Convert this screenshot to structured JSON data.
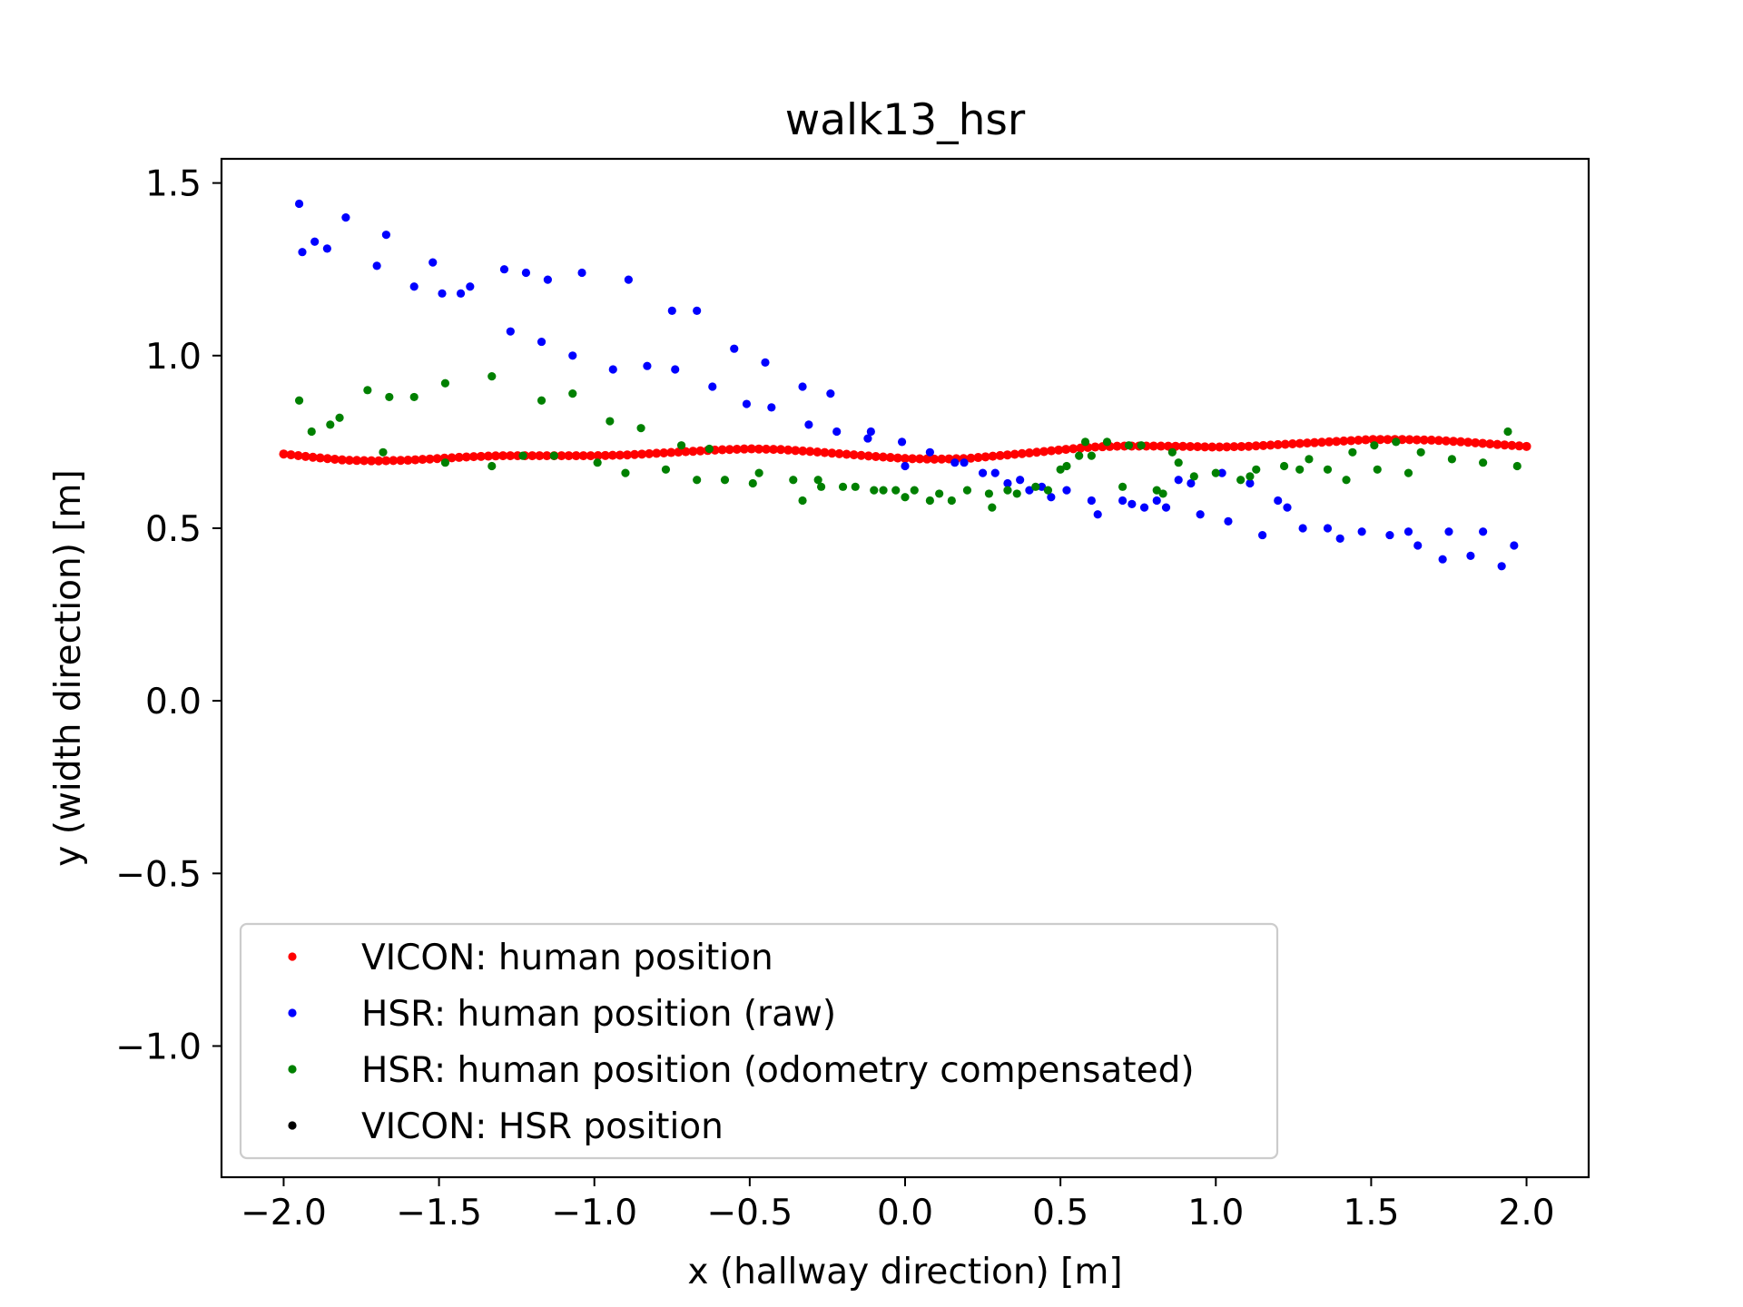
{
  "chart_data": {
    "type": "scatter",
    "title": "walk13_hsr",
    "xlabel": "x (hallway direction) [m]",
    "ylabel": "y (width direction) [m]",
    "xlim": [
      -2.2,
      2.2
    ],
    "ylim": [
      -1.38,
      1.57
    ],
    "xticks": [
      -2.0,
      -1.5,
      -1.0,
      -0.5,
      0.0,
      0.5,
      1.0,
      1.5,
      2.0
    ],
    "xtick_labels": [
      "−2.0",
      "−1.5",
      "−1.0",
      "−0.5",
      "0.0",
      "0.5",
      "1.0",
      "1.5",
      "2.0"
    ],
    "yticks": [
      -1.0,
      -0.5,
      0.0,
      0.5,
      1.0,
      1.5
    ],
    "ytick_labels": [
      "−1.0",
      "−0.5",
      "0.0",
      "0.5",
      "1.0",
      "1.5"
    ],
    "grid": false,
    "legend_position": "lower-left",
    "series": [
      {
        "name": "VICON: human position",
        "color": "#ff0000",
        "curve": [
          [
            -2.0,
            0.715
          ],
          [
            -1.9,
            0.705
          ],
          [
            -1.8,
            0.697
          ],
          [
            -1.7,
            0.695
          ],
          [
            -1.6,
            0.697
          ],
          [
            -1.5,
            0.702
          ],
          [
            -1.4,
            0.707
          ],
          [
            -1.3,
            0.71
          ],
          [
            -1.2,
            0.71
          ],
          [
            -1.1,
            0.71
          ],
          [
            -1.0,
            0.71
          ],
          [
            -0.9,
            0.712
          ],
          [
            -0.8,
            0.717
          ],
          [
            -0.7,
            0.722
          ],
          [
            -0.6,
            0.727
          ],
          [
            -0.5,
            0.73
          ],
          [
            -0.4,
            0.728
          ],
          [
            -0.3,
            0.722
          ],
          [
            -0.2,
            0.715
          ],
          [
            -0.1,
            0.708
          ],
          [
            0.0,
            0.702
          ],
          [
            0.1,
            0.7
          ],
          [
            0.2,
            0.702
          ],
          [
            0.3,
            0.71
          ],
          [
            0.4,
            0.718
          ],
          [
            0.5,
            0.727
          ],
          [
            0.6,
            0.735
          ],
          [
            0.7,
            0.738
          ],
          [
            0.8,
            0.738
          ],
          [
            0.9,
            0.737
          ],
          [
            1.0,
            0.735
          ],
          [
            1.1,
            0.737
          ],
          [
            1.2,
            0.742
          ],
          [
            1.3,
            0.747
          ],
          [
            1.4,
            0.752
          ],
          [
            1.5,
            0.757
          ],
          [
            1.6,
            0.757
          ],
          [
            1.7,
            0.755
          ],
          [
            1.8,
            0.75
          ],
          [
            1.9,
            0.743
          ],
          [
            2.0,
            0.737
          ]
        ],
        "points": []
      },
      {
        "name": "HSR: human position (raw)",
        "color": "#0000ff",
        "points": [
          [
            -1.95,
            1.44
          ],
          [
            -1.94,
            1.3
          ],
          [
            -1.9,
            1.33
          ],
          [
            -1.86,
            1.31
          ],
          [
            -1.8,
            1.4
          ],
          [
            -1.7,
            1.26
          ],
          [
            -1.67,
            1.35
          ],
          [
            -1.58,
            1.2
          ],
          [
            -1.52,
            1.27
          ],
          [
            -1.49,
            1.18
          ],
          [
            -1.43,
            1.18
          ],
          [
            -1.4,
            1.2
          ],
          [
            -1.29,
            1.25
          ],
          [
            -1.27,
            1.07
          ],
          [
            -1.22,
            1.24
          ],
          [
            -1.17,
            1.04
          ],
          [
            -1.15,
            1.22
          ],
          [
            -1.07,
            1.0
          ],
          [
            -1.04,
            1.24
          ],
          [
            -0.94,
            0.96
          ],
          [
            -0.89,
            1.22
          ],
          [
            -0.83,
            0.97
          ],
          [
            -0.75,
            1.13
          ],
          [
            -0.74,
            0.96
          ],
          [
            -0.67,
            1.13
          ],
          [
            -0.62,
            0.91
          ],
          [
            -0.55,
            1.02
          ],
          [
            -0.51,
            0.86
          ],
          [
            -0.45,
            0.98
          ],
          [
            -0.43,
            0.85
          ],
          [
            -0.33,
            0.91
          ],
          [
            -0.31,
            0.8
          ],
          [
            -0.24,
            0.89
          ],
          [
            -0.22,
            0.78
          ],
          [
            -0.12,
            0.76
          ],
          [
            -0.11,
            0.78
          ],
          [
            -0.01,
            0.75
          ],
          [
            0.0,
            0.68
          ],
          [
            0.08,
            0.72
          ],
          [
            0.16,
            0.69
          ],
          [
            0.19,
            0.69
          ],
          [
            0.25,
            0.66
          ],
          [
            0.29,
            0.66
          ],
          [
            0.33,
            0.63
          ],
          [
            0.37,
            0.64
          ],
          [
            0.4,
            0.61
          ],
          [
            0.44,
            0.62
          ],
          [
            0.47,
            0.59
          ],
          [
            0.52,
            0.61
          ],
          [
            0.6,
            0.58
          ],
          [
            0.62,
            0.54
          ],
          [
            0.7,
            0.58
          ],
          [
            0.73,
            0.57
          ],
          [
            0.77,
            0.56
          ],
          [
            0.81,
            0.58
          ],
          [
            0.84,
            0.56
          ],
          [
            0.88,
            0.64
          ],
          [
            0.92,
            0.63
          ],
          [
            0.95,
            0.54
          ],
          [
            1.02,
            0.66
          ],
          [
            1.04,
            0.52
          ],
          [
            1.11,
            0.63
          ],
          [
            1.15,
            0.48
          ],
          [
            1.2,
            0.58
          ],
          [
            1.23,
            0.56
          ],
          [
            1.28,
            0.5
          ],
          [
            1.36,
            0.5
          ],
          [
            1.4,
            0.47
          ],
          [
            1.47,
            0.49
          ],
          [
            1.56,
            0.48
          ],
          [
            1.62,
            0.49
          ],
          [
            1.65,
            0.45
          ],
          [
            1.73,
            0.41
          ],
          [
            1.75,
            0.49
          ],
          [
            1.82,
            0.42
          ],
          [
            1.86,
            0.49
          ],
          [
            1.92,
            0.39
          ],
          [
            1.96,
            0.45
          ]
        ]
      },
      {
        "name": "HSR: human position (odometry compensated)",
        "color": "#008000",
        "points": [
          [
            -1.95,
            0.87
          ],
          [
            -1.91,
            0.78
          ],
          [
            -1.85,
            0.8
          ],
          [
            -1.82,
            0.82
          ],
          [
            -1.73,
            0.9
          ],
          [
            -1.68,
            0.72
          ],
          [
            -1.66,
            0.88
          ],
          [
            -1.58,
            0.88
          ],
          [
            -1.48,
            0.92
          ],
          [
            -1.48,
            0.69
          ],
          [
            -1.33,
            0.94
          ],
          [
            -1.33,
            0.68
          ],
          [
            -1.23,
            0.71
          ],
          [
            -1.17,
            0.87
          ],
          [
            -1.13,
            0.71
          ],
          [
            -1.07,
            0.89
          ],
          [
            -0.99,
            0.69
          ],
          [
            -0.95,
            0.81
          ],
          [
            -0.9,
            0.66
          ],
          [
            -0.85,
            0.79
          ],
          [
            -0.77,
            0.67
          ],
          [
            -0.72,
            0.74
          ],
          [
            -0.67,
            0.64
          ],
          [
            -0.63,
            0.73
          ],
          [
            -0.58,
            0.64
          ],
          [
            -0.49,
            0.63
          ],
          [
            -0.47,
            0.66
          ],
          [
            -0.36,
            0.64
          ],
          [
            -0.33,
            0.58
          ],
          [
            -0.28,
            0.64
          ],
          [
            -0.27,
            0.62
          ],
          [
            -0.2,
            0.62
          ],
          [
            -0.16,
            0.62
          ],
          [
            -0.1,
            0.61
          ],
          [
            -0.07,
            0.61
          ],
          [
            -0.03,
            0.61
          ],
          [
            0.0,
            0.59
          ],
          [
            0.03,
            0.61
          ],
          [
            0.08,
            0.58
          ],
          [
            0.11,
            0.6
          ],
          [
            0.15,
            0.58
          ],
          [
            0.2,
            0.61
          ],
          [
            0.27,
            0.6
          ],
          [
            0.28,
            0.56
          ],
          [
            0.33,
            0.61
          ],
          [
            0.36,
            0.6
          ],
          [
            0.42,
            0.62
          ],
          [
            0.46,
            0.61
          ],
          [
            0.5,
            0.67
          ],
          [
            0.52,
            0.68
          ],
          [
            0.56,
            0.71
          ],
          [
            0.58,
            0.75
          ],
          [
            0.6,
            0.71
          ],
          [
            0.65,
            0.75
          ],
          [
            0.7,
            0.62
          ],
          [
            0.72,
            0.74
          ],
          [
            0.76,
            0.74
          ],
          [
            0.81,
            0.61
          ],
          [
            0.83,
            0.6
          ],
          [
            0.86,
            0.72
          ],
          [
            0.88,
            0.69
          ],
          [
            0.93,
            0.65
          ],
          [
            1.0,
            0.66
          ],
          [
            1.08,
            0.64
          ],
          [
            1.11,
            0.65
          ],
          [
            1.13,
            0.67
          ],
          [
            1.22,
            0.68
          ],
          [
            1.27,
            0.67
          ],
          [
            1.3,
            0.7
          ],
          [
            1.36,
            0.67
          ],
          [
            1.42,
            0.64
          ],
          [
            1.44,
            0.72
          ],
          [
            1.51,
            0.74
          ],
          [
            1.52,
            0.67
          ],
          [
            1.58,
            0.75
          ],
          [
            1.62,
            0.66
          ],
          [
            1.66,
            0.72
          ],
          [
            1.76,
            0.7
          ],
          [
            1.86,
            0.69
          ],
          [
            1.94,
            0.78
          ],
          [
            1.97,
            0.68
          ]
        ]
      },
      {
        "name": "VICON: HSR position",
        "color": "#000000",
        "points": []
      }
    ],
    "legend_entries": [
      "VICON: human position",
      "HSR: human position (raw)",
      "HSR: human position (odometry compensated)",
      "VICON: HSR position"
    ]
  }
}
